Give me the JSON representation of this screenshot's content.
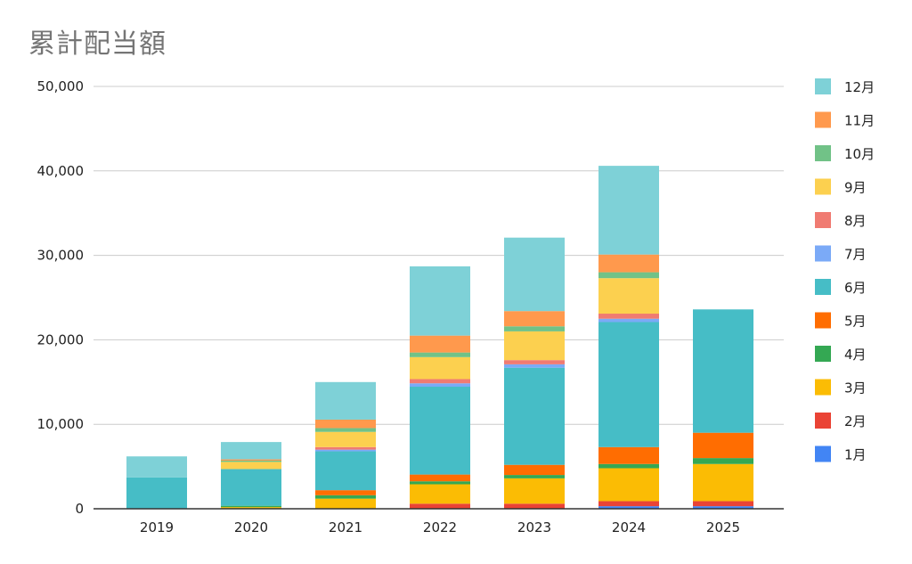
{
  "chart_data": {
    "type": "bar",
    "stacked": true,
    "title": "累計配当額",
    "xlabel": "",
    "ylabel": "",
    "ylim": [
      0,
      50000
    ],
    "yticks": [
      0,
      10000,
      20000,
      30000,
      40000,
      50000
    ],
    "ytick_labels": [
      "0",
      "10,000",
      "20,000",
      "30,000",
      "40,000",
      "50,000"
    ],
    "grid": true,
    "legend_position": "right",
    "categories": [
      "2019",
      "2020",
      "2021",
      "2022",
      "2023",
      "2024",
      "2025"
    ],
    "series": [
      {
        "name": "1月",
        "color": "#4285F4",
        "values": [
          0,
          0,
          0,
          0,
          0,
          300,
          300
        ]
      },
      {
        "name": "2月",
        "color": "#EA4335",
        "values": [
          0,
          0,
          0,
          600,
          600,
          600,
          600
        ]
      },
      {
        "name": "3月",
        "color": "#FBBC04",
        "values": [
          0,
          200,
          1200,
          2300,
          3000,
          3900,
          4400
        ]
      },
      {
        "name": "4月",
        "color": "#34A853",
        "values": [
          0,
          150,
          400,
          350,
          400,
          500,
          700
        ]
      },
      {
        "name": "5月",
        "color": "#FF6D01",
        "values": [
          0,
          0,
          600,
          800,
          1200,
          2000,
          3000
        ]
      },
      {
        "name": "6月",
        "color": "#46BDC6",
        "values": [
          3700,
          4350,
          4600,
          10400,
          11500,
          14800,
          14600
        ]
      },
      {
        "name": "7月",
        "color": "#7BAAF7",
        "values": [
          0,
          0,
          200,
          400,
          400,
          400,
          0
        ]
      },
      {
        "name": "8月",
        "color": "#F07B72",
        "values": [
          0,
          0,
          300,
          500,
          500,
          600,
          0
        ]
      },
      {
        "name": "9月",
        "color": "#FCD04F",
        "values": [
          0,
          850,
          1800,
          2600,
          3400,
          4200,
          0
        ]
      },
      {
        "name": "10月",
        "color": "#71C287",
        "values": [
          0,
          150,
          450,
          550,
          600,
          700,
          0
        ]
      },
      {
        "name": "11月",
        "color": "#FF994D",
        "values": [
          0,
          150,
          1000,
          2000,
          1800,
          2100,
          0
        ]
      },
      {
        "name": "12月",
        "color": "#7ED1D7",
        "values": [
          2500,
          2050,
          4450,
          8200,
          8700,
          10500,
          0
        ]
      }
    ],
    "axis_color": "#333333",
    "grid_color": "#cccccc"
  }
}
